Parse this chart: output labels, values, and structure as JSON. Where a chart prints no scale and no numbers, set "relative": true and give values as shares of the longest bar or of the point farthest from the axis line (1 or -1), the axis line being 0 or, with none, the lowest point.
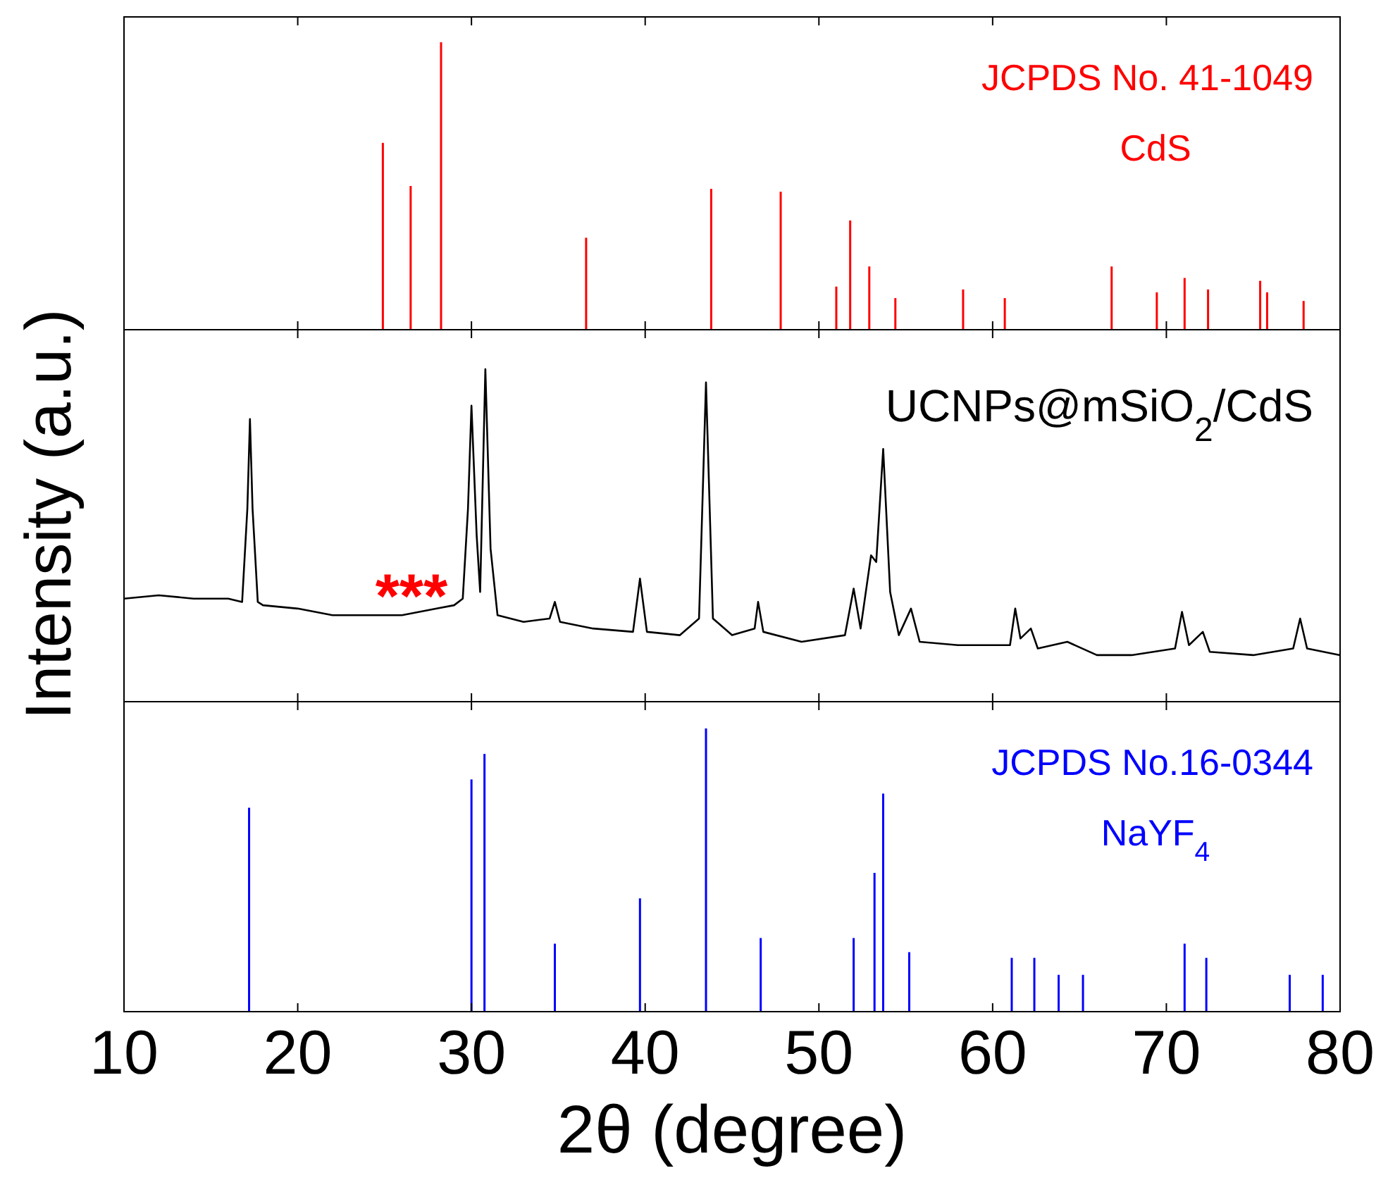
{
  "chart_data": [
    {
      "type": "bar",
      "relative": true,
      "xlim": [
        10,
        80
      ],
      "xticks": [
        10,
        20,
        30,
        40,
        50,
        60,
        70,
        80
      ],
      "tick_labels": false,
      "x": [
        24.9,
        26.5,
        28.25,
        36.6,
        43.8,
        47.8,
        51.0,
        51.8,
        52.9,
        54.4,
        58.3,
        60.7,
        66.85,
        69.45,
        71.05,
        72.4,
        75.4,
        75.8,
        77.9
      ],
      "series": [
        {
          "color": "#ff0000",
          "values": [
            0.65,
            0.5,
            1,
            0.32,
            0.49,
            0.48,
            0.15,
            0.38,
            0.22,
            0.11,
            0.14,
            0.11,
            0.22,
            0.13,
            0.18,
            0.14,
            0.17,
            0.13,
            0.1
          ]
        }
      ],
      "annotations": [
        "JCPDS No. 41-1049",
        "CdS"
      ]
    },
    {
      "type": "line",
      "relative": true,
      "xlim": [
        10,
        80
      ],
      "xticks": [
        10,
        20,
        30,
        40,
        50,
        60,
        70,
        80
      ],
      "tick_labels": false,
      "ylabel": "Intensity (a.u.)",
      "x": [
        10,
        12,
        14,
        16,
        16.8,
        17.1,
        17.25,
        17.4,
        17.7,
        18,
        20,
        22,
        24,
        26,
        28,
        29,
        29.5,
        29.8,
        30.0,
        30.3,
        30.5,
        30.8,
        31.1,
        31.5,
        33,
        34.5,
        34.8,
        35.1,
        37,
        39.3,
        39.7,
        40.1,
        42,
        43.1,
        43.5,
        43.9,
        45,
        46.3,
        46.5,
        46.8,
        49,
        51.5,
        52.0,
        52.4,
        53.0,
        53.3,
        53.7,
        54.1,
        54.6,
        55.3,
        55.8,
        58,
        61.0,
        61.3,
        61.6,
        62.2,
        62.6,
        64.3,
        66,
        68,
        70.5,
        70.9,
        71.3,
        72.1,
        72.5,
        75,
        77.3,
        77.7,
        78.1,
        80
      ],
      "series": [
        {
          "color": "#000000",
          "values": [
            0.31,
            0.32,
            0.31,
            0.31,
            0.3,
            0.58,
            0.85,
            0.58,
            0.3,
            0.29,
            0.28,
            0.26,
            0.26,
            0.26,
            0.28,
            0.29,
            0.31,
            0.58,
            0.89,
            0.5,
            0.33,
            1,
            0.46,
            0.26,
            0.24,
            0.25,
            0.3,
            0.24,
            0.22,
            0.21,
            0.37,
            0.21,
            0.2,
            0.25,
            0.96,
            0.25,
            0.2,
            0.22,
            0.3,
            0.21,
            0.18,
            0.2,
            0.34,
            0.22,
            0.44,
            0.42,
            0.76,
            0.33,
            0.2,
            0.28,
            0.18,
            0.17,
            0.17,
            0.28,
            0.19,
            0.22,
            0.16,
            0.18,
            0.14,
            0.14,
            0.16,
            0.27,
            0.17,
            0.21,
            0.15,
            0.14,
            0.16,
            0.25,
            0.16,
            0.14
          ]
        }
      ],
      "annotations": [
        "UCNPs@mSiO$_{2}$/CdS",
        "***"
      ]
    },
    {
      "type": "bar",
      "relative": true,
      "xlim": [
        10,
        80
      ],
      "xticks": [
        10,
        20,
        30,
        40,
        50,
        60,
        70,
        80
      ],
      "xlabel": "2θ (degree)",
      "x": [
        17.2,
        30.0,
        30.75,
        34.8,
        39.7,
        43.5,
        46.65,
        52.0,
        53.2,
        53.7,
        55.2,
        61.1,
        62.4,
        63.8,
        65.2,
        71.05,
        72.3,
        77.1,
        79.0
      ],
      "series": [
        {
          "color": "#0000ff",
          "values": [
            0.72,
            0.82,
            0.91,
            0.24,
            0.4,
            1,
            0.26,
            0.26,
            0.49,
            0.77,
            0.21,
            0.19,
            0.19,
            0.13,
            0.13,
            0.24,
            0.19,
            0.13,
            0.13
          ]
        }
      ],
      "annotations": [
        "JCPDS No.16-0344",
        "NaYF$_{4}$"
      ]
    }
  ]
}
